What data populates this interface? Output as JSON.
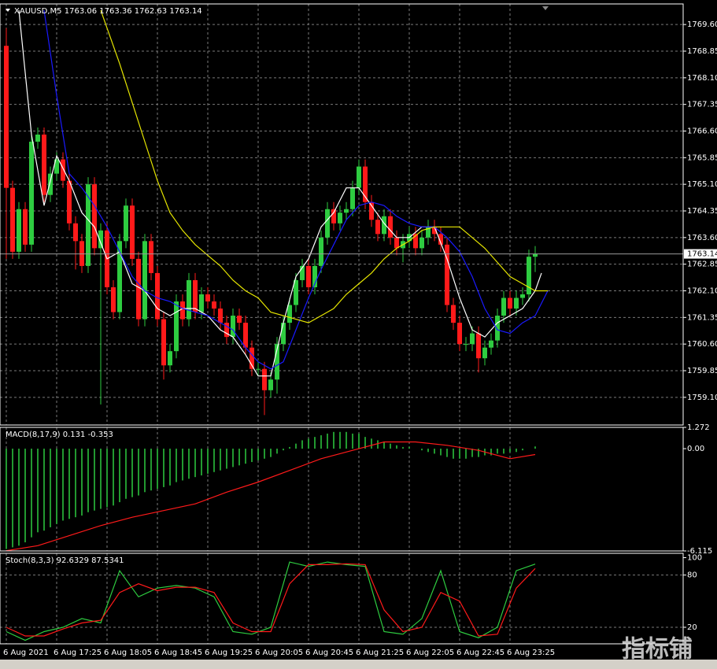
{
  "chart_data": [
    {
      "type": "candlestick",
      "title": "XAUUSD,M5  1763.06 1763.36 1762.63 1763.14",
      "open": [
        1769.0,
        1765.0,
        1763.2,
        1764.4,
        1763.4,
        1766.3,
        1766.5,
        1764.8,
        1765.4,
        1765.8,
        1765.2,
        1764.0,
        1763.5,
        1762.8,
        1765.1,
        1763.3,
        1763.8,
        1762.2,
        1761.5,
        1763.5,
        1764.5,
        1763.0,
        1761.3,
        1763.5,
        1762.6,
        1761.3,
        1760.0,
        1760.4,
        1761.8,
        1761.3,
        1762.4,
        1761.5,
        1762.0,
        1761.8,
        1761.6,
        1761.2,
        1760.8,
        1761.4,
        1761.2,
        1760.5,
        1759.9,
        1759.9,
        1759.3,
        1759.6,
        1760.6,
        1761.2,
        1761.7,
        1762.4,
        1762.8,
        1762.2,
        1762.8,
        1763.6,
        1764.4,
        1764.0,
        1764.3,
        1764.4,
        1765.0,
        1765.6,
        1764.6,
        1764.1,
        1763.7,
        1764.2,
        1763.6,
        1763.3,
        1763.5,
        1763.7,
        1763.3,
        1763.6,
        1763.9,
        1763.7,
        1763.4,
        1761.7,
        1761.2,
        1760.6,
        1760.6,
        1760.9,
        1760.2,
        1760.5,
        1760.7,
        1761.4,
        1761.9,
        1761.6,
        1761.9,
        1762.0,
        1763.06
      ],
      "high": [
        1769.5,
        1765.2,
        1764.6,
        1764.6,
        1766.5,
        1766.7,
        1766.7,
        1765.6,
        1766.0,
        1766.0,
        1765.4,
        1764.2,
        1763.7,
        1765.3,
        1765.3,
        1764.0,
        1764.0,
        1762.4,
        1763.7,
        1764.7,
        1764.7,
        1763.2,
        1763.7,
        1763.7,
        1762.8,
        1761.5,
        1760.6,
        1762.0,
        1762.0,
        1762.6,
        1762.6,
        1762.2,
        1762.2,
        1762.0,
        1761.8,
        1761.4,
        1761.6,
        1761.6,
        1761.4,
        1760.7,
        1760.1,
        1760.1,
        1759.8,
        1760.8,
        1761.4,
        1761.9,
        1762.6,
        1763.0,
        1763.0,
        1763.0,
        1763.8,
        1764.6,
        1764.6,
        1764.5,
        1764.6,
        1765.2,
        1765.8,
        1765.8,
        1764.8,
        1764.3,
        1764.4,
        1764.4,
        1763.8,
        1763.7,
        1763.9,
        1763.9,
        1763.8,
        1764.1,
        1764.1,
        1763.9,
        1763.6,
        1761.9,
        1761.4,
        1760.8,
        1761.1,
        1761.1,
        1760.7,
        1760.9,
        1761.6,
        1762.1,
        1762.1,
        1762.1,
        1762.2,
        1763.26,
        1763.36
      ],
      "low": [
        1763.0,
        1763.0,
        1763.0,
        1763.2,
        1763.2,
        1766.1,
        1764.6,
        1764.6,
        1765.2,
        1765.0,
        1763.8,
        1762.7,
        1762.6,
        1762.6,
        1763.1,
        1758.9,
        1762.0,
        1761.3,
        1761.3,
        1763.3,
        1762.8,
        1761.1,
        1761.1,
        1762.4,
        1761.1,
        1759.6,
        1759.8,
        1760.2,
        1761.1,
        1761.1,
        1761.3,
        1761.3,
        1761.6,
        1761.4,
        1761.0,
        1760.6,
        1760.6,
        1761.0,
        1760.3,
        1759.7,
        1759.7,
        1758.6,
        1759.1,
        1759.2,
        1760.4,
        1761.0,
        1761.5,
        1762.2,
        1762.0,
        1762.0,
        1762.6,
        1763.4,
        1763.8,
        1763.8,
        1764.1,
        1764.2,
        1764.8,
        1764.4,
        1763.9,
        1763.5,
        1763.5,
        1763.4,
        1763.1,
        1762.9,
        1763.3,
        1763.1,
        1763.1,
        1763.4,
        1763.5,
        1763.2,
        1761.5,
        1761.0,
        1760.4,
        1760.4,
        1760.4,
        1759.8,
        1760.0,
        1760.3,
        1760.5,
        1761.2,
        1761.4,
        1761.4,
        1761.7,
        1761.8,
        1762.63
      ],
      "close": [
        1765.0,
        1763.2,
        1764.4,
        1763.4,
        1766.3,
        1766.5,
        1764.8,
        1765.4,
        1765.8,
        1765.2,
        1764.0,
        1763.5,
        1762.8,
        1765.1,
        1763.3,
        1763.8,
        1762.2,
        1761.5,
        1763.5,
        1764.5,
        1763.0,
        1761.3,
        1763.5,
        1762.6,
        1761.3,
        1760.0,
        1760.4,
        1761.8,
        1761.3,
        1762.4,
        1761.5,
        1762.0,
        1761.8,
        1761.6,
        1761.2,
        1760.8,
        1761.4,
        1761.2,
        1760.5,
        1759.9,
        1759.9,
        1759.3,
        1759.6,
        1760.6,
        1761.2,
        1761.7,
        1762.4,
        1762.8,
        1762.2,
        1762.8,
        1763.6,
        1764.4,
        1764.0,
        1764.3,
        1764.4,
        1765.0,
        1765.6,
        1764.6,
        1764.1,
        1763.7,
        1764.2,
        1763.6,
        1763.3,
        1763.5,
        1763.7,
        1763.3,
        1763.6,
        1763.9,
        1763.7,
        1763.4,
        1761.7,
        1761.2,
        1760.6,
        1760.6,
        1760.9,
        1760.2,
        1760.5,
        1760.7,
        1761.4,
        1761.9,
        1761.6,
        1761.9,
        1762.0,
        1763.06,
        1763.14
      ],
      "bull_color": "#2ecc40",
      "bear_color": "#ff1a1a",
      "lines": [
        {
          "color": "#ffffff",
          "x": [
            2,
            4,
            6,
            8,
            10,
            12,
            14,
            16,
            18,
            20,
            22,
            24,
            26,
            28,
            30,
            32,
            34,
            36,
            38,
            40,
            42,
            44,
            46,
            48,
            50,
            52,
            54,
            56,
            58,
            60,
            62,
            64,
            66,
            68,
            70,
            72,
            74,
            76,
            78,
            80,
            82,
            84,
            85
          ],
          "values": [
            1770.0,
            1766.5,
            1764.5,
            1765.9,
            1765.2,
            1764.3,
            1763.9,
            1763.0,
            1763.2,
            1762.3,
            1762.1,
            1761.6,
            1761.4,
            1761.6,
            1761.6,
            1761.4,
            1761.0,
            1760.8,
            1760.3,
            1759.7,
            1759.7,
            1761.2,
            1762.5,
            1763.0,
            1763.9,
            1764.3,
            1765.0,
            1765.0,
            1764.5,
            1764.0,
            1763.6,
            1763.6,
            1763.9,
            1763.9,
            1763.0,
            1761.9,
            1761.0,
            1760.8,
            1761.2,
            1761.4,
            1761.6,
            1762.1,
            1762.6
          ]
        },
        {
          "color": "#1a1aff",
          "x": [
            6,
            8,
            10,
            12,
            14,
            16,
            18,
            20,
            22,
            24,
            26,
            28,
            30,
            32,
            34,
            36,
            38,
            40,
            42,
            44,
            46,
            48,
            50,
            52,
            54,
            56,
            58,
            60,
            62,
            64,
            66,
            68,
            70,
            72,
            74,
            76,
            78,
            80,
            82,
            84,
            86
          ],
          "values": [
            1770.0,
            1767.6,
            1765.4,
            1765.0,
            1764.5,
            1763.9,
            1763.2,
            1762.5,
            1762.1,
            1761.9,
            1761.8,
            1761.6,
            1761.5,
            1761.4,
            1761.2,
            1761.0,
            1760.5,
            1760.1,
            1759.9,
            1760.1,
            1761.0,
            1761.9,
            1762.7,
            1763.4,
            1764.1,
            1764.5,
            1764.6,
            1764.5,
            1764.2,
            1764.0,
            1763.9,
            1763.9,
            1763.6,
            1763.2,
            1762.5,
            1761.6,
            1761.0,
            1760.9,
            1761.2,
            1761.4,
            1762.1
          ]
        },
        {
          "color": "#e6e600",
          "x": [
            15,
            18,
            20,
            22,
            24,
            26,
            28,
            30,
            32,
            34,
            36,
            38,
            40,
            42,
            44,
            46,
            48,
            50,
            52,
            54,
            56,
            58,
            60,
            62,
            64,
            66,
            68,
            70,
            72,
            74,
            76,
            78,
            80,
            82,
            84,
            86
          ],
          "values": [
            1770.0,
            1768.5,
            1767.4,
            1766.3,
            1765.2,
            1764.3,
            1763.8,
            1763.4,
            1763.1,
            1762.8,
            1762.4,
            1762.1,
            1761.9,
            1761.5,
            1761.4,
            1761.3,
            1761.2,
            1761.4,
            1761.6,
            1762.0,
            1762.3,
            1762.6,
            1763.0,
            1763.3,
            1763.5,
            1763.8,
            1763.9,
            1763.9,
            1763.9,
            1763.6,
            1763.3,
            1762.9,
            1762.5,
            1762.3,
            1762.1,
            1762.1
          ]
        }
      ],
      "last_price": 1763.14,
      "xlim": [
        -1,
        107.5
      ],
      "ylim": [
        1758.32,
        1770.18
      ],
      "yticks": [
        {
          "value": 1769.6,
          "label": "1769.60"
        },
        1768.85,
        {
          "value": 1768.1,
          "label": "1768.10"
        },
        1767.35,
        {
          "value": 1766.6,
          "label": "1766.60"
        },
        1765.85,
        {
          "value": 1765.1,
          "label": "1765.10"
        },
        1764.35,
        {
          "value": 1763.6,
          "label": "1763.60"
        },
        1762.85,
        {
          "value": 1762.1,
          "label": "1762.10"
        },
        1761.35,
        {
          "value": 1760.6,
          "label": "1760.60"
        },
        1759.85,
        {
          "value": 1759.1,
          "label": "1759.10"
        }
      ],
      "xticks": [
        {
          "value": 0,
          "label": "6 Aug 2021"
        },
        {
          "value": 8,
          "label": "6 Aug 17:25"
        },
        {
          "value": 16,
          "label": "6 Aug 18:05"
        },
        {
          "value": 24,
          "label": "6 Aug 18:45"
        },
        {
          "value": 32,
          "label": "6 Aug 19:25"
        },
        {
          "value": 40,
          "label": "6 Aug 20:05"
        },
        {
          "value": 48,
          "label": "6 Aug 20:45"
        },
        {
          "value": 56,
          "label": "6 Aug 21:25"
        },
        {
          "value": 64,
          "label": "6 Aug 22:05"
        },
        {
          "value": 72,
          "label": "6 Aug 22:45"
        },
        {
          "value": 80,
          "label": "6 Aug 23:25"
        }
      ],
      "grid": true
    },
    {
      "type": "macd",
      "title": "MACD(8,17,9) 0.131 -0.353",
      "values": [
        -6.0,
        -5.9,
        -5.8,
        -5.6,
        -5.3,
        -5.0,
        -4.9,
        -4.7,
        -4.5,
        -4.3,
        -4.2,
        -4.1,
        -4.0,
        -3.8,
        -3.7,
        -3.6,
        -3.5,
        -3.4,
        -3.2,
        -3.0,
        -2.9,
        -2.8,
        -2.6,
        -2.5,
        -2.4,
        -2.3,
        -2.2,
        -2.0,
        -1.9,
        -1.8,
        -1.7,
        -1.6,
        -1.5,
        -1.4,
        -1.3,
        -1.2,
        -1.1,
        -1.0,
        -0.9,
        -0.8,
        -0.7,
        -0.6,
        -0.5,
        -0.3,
        -0.1,
        0.1,
        0.3,
        0.5,
        0.6,
        0.7,
        0.8,
        0.9,
        1.0,
        1.0,
        1.0,
        0.9,
        0.9,
        0.7,
        0.6,
        0.5,
        0.4,
        0.3,
        0.2,
        0.1,
        0.1,
        0.0,
        -0.1,
        -0.2,
        -0.3,
        -0.4,
        -0.5,
        -0.6,
        -0.6,
        -0.6,
        -0.5,
        -0.5,
        -0.4,
        -0.4,
        -0.3,
        -0.3,
        -0.2,
        -0.2,
        -0.1,
        0.0,
        0.131
      ],
      "color": "#2ecc40",
      "signal": {
        "color": "#ff1a1a",
        "x": [
          0,
          5,
          10,
          15,
          20,
          25,
          30,
          35,
          40,
          45,
          50,
          55,
          60,
          65,
          70,
          75,
          80,
          84
        ],
        "values": [
          -6.1,
          -5.8,
          -5.2,
          -4.6,
          -4.1,
          -3.7,
          -3.3,
          -2.6,
          -2.0,
          -1.3,
          -0.6,
          -0.1,
          0.4,
          0.4,
          0.2,
          -0.1,
          -0.6,
          -0.353
        ]
      },
      "ylim": [
        -6.115,
        1.272
      ],
      "yticks": [
        1.272,
        {
          "value": 0,
          "label": "0.00"
        },
        -6.115
      ]
    },
    {
      "type": "stochastic",
      "title": "Stoch(8,3,3) 92.6329 87.5341",
      "series": [
        {
          "color": "#2ecc40",
          "x": [
            0,
            3,
            6,
            9,
            12,
            15,
            18,
            21,
            24,
            27,
            30,
            33,
            36,
            39,
            42,
            45,
            48,
            51,
            54,
            57,
            60,
            63,
            66,
            69,
            72,
            75,
            78,
            81,
            84
          ],
          "values": [
            15,
            5,
            15,
            20,
            30,
            25,
            85,
            55,
            65,
            68,
            65,
            55,
            15,
            12,
            20,
            95,
            90,
            95,
            92,
            90,
            15,
            12,
            30,
            85,
            15,
            8,
            20,
            85,
            92.6329
          ]
        },
        {
          "color": "#ff1a1a",
          "x": [
            0,
            3,
            6,
            9,
            12,
            15,
            18,
            21,
            24,
            27,
            30,
            33,
            36,
            39,
            42,
            45,
            48,
            51,
            54,
            57,
            60,
            63,
            66,
            69,
            72,
            75,
            78,
            81,
            84
          ],
          "values": [
            20,
            10,
            10,
            18,
            25,
            28,
            60,
            70,
            62,
            66,
            66,
            60,
            25,
            15,
            15,
            70,
            92,
            92,
            93,
            92,
            40,
            15,
            20,
            60,
            50,
            10,
            12,
            65,
            87.5341
          ]
        }
      ],
      "ylim": [
        1,
        105
      ],
      "yticks": [
        100,
        80,
        20
      ],
      "levels": [
        80,
        20
      ]
    }
  ],
  "watermark": "指标铺"
}
